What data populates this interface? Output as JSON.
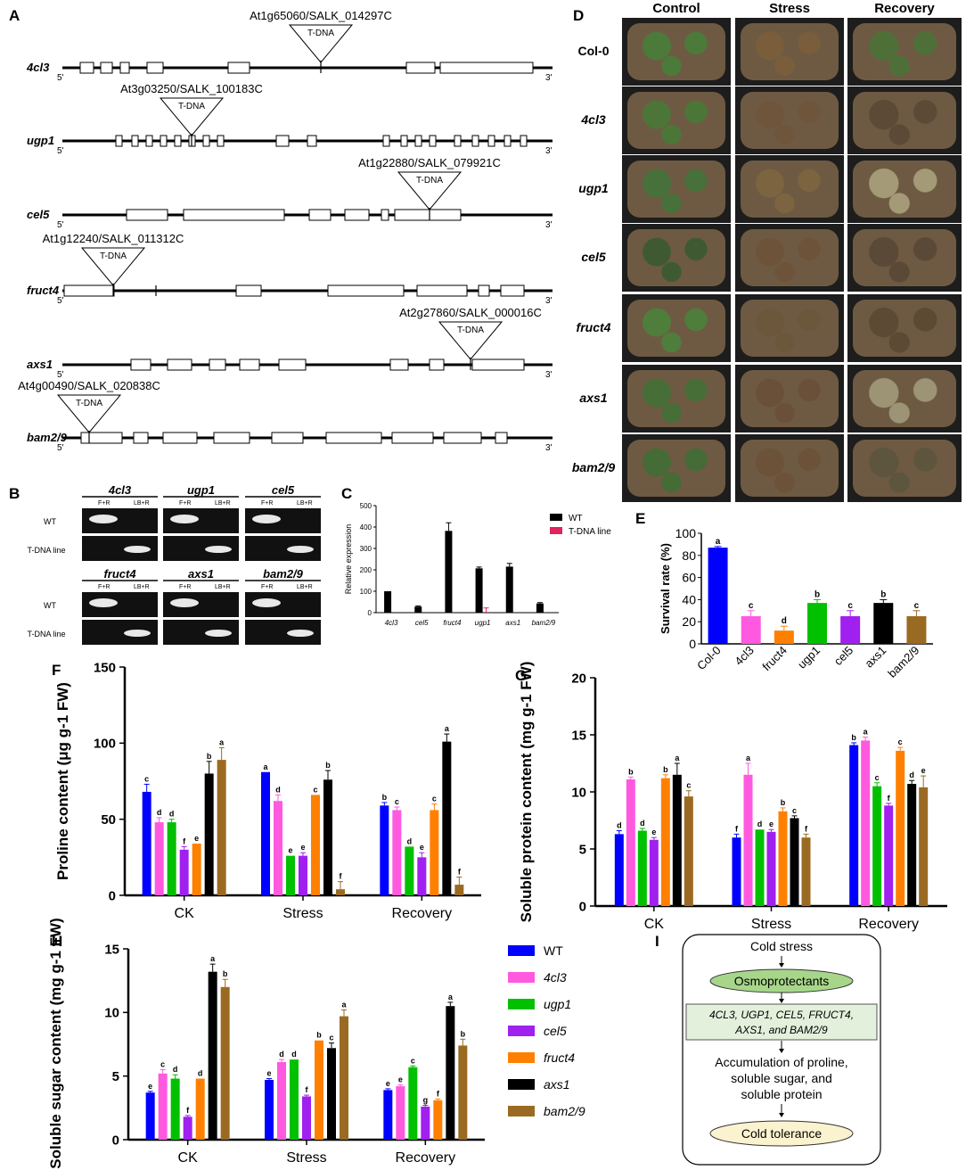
{
  "panels": {
    "A": "A",
    "B": "B",
    "C": "C",
    "D": "D",
    "E": "E",
    "F": "F",
    "G": "G",
    "H": "H",
    "I": "I"
  },
  "gene_structures": [
    {
      "gene": "4cl3",
      "label": "At1g65060/SALK_014297C"
    },
    {
      "gene": "ugp1",
      "label": "At3g03250/SALK_100183C"
    },
    {
      "gene": "cel5",
      "label": "At1g22880/SALK_079921C"
    },
    {
      "gene": "fruct4",
      "label": "At1g12240/SALK_011312C"
    },
    {
      "gene": "axs1",
      "label": "At2g27860/SALK_000016C"
    },
    {
      "gene": "bam2/9",
      "label": "At4g00490/SALK_020838C"
    }
  ],
  "tdna_label": "T-DNA",
  "end5": "5'",
  "end3": "3'",
  "gel": {
    "genes": [
      "4cl3",
      "ugp1",
      "cel5",
      "fruct4",
      "axs1",
      "bam2/9"
    ],
    "primers": [
      [
        "F+R",
        "LB+R"
      ],
      [
        "F+R",
        "LB+R"
      ],
      [
        "F+R",
        "LB+R"
      ],
      [
        "F+R",
        "LB+R"
      ],
      [
        "F+R",
        "LB+R"
      ],
      [
        "F+R",
        "LB+R"
      ]
    ],
    "row_labels": [
      "WT",
      "T-DNA line",
      "WT",
      "T-DNA line"
    ]
  },
  "photos": {
    "columns": [
      "Control",
      "Stress",
      "Recovery"
    ],
    "rows": [
      "Col-0",
      "4cl3",
      "ugp1",
      "cel5",
      "fruct4",
      "axs1",
      "bam2/9"
    ]
  },
  "legend_h": [
    "WT",
    "4cl3",
    "ugp1",
    "cel5",
    "fruct4",
    "axs1",
    "bam2/9"
  ],
  "colors": {
    "WT": "#0000ff",
    "4cl3": "#ff59e0",
    "ugp1": "#00c000",
    "cel5": "#a020f0",
    "fruct4": "#ff8000",
    "axs1": "#000000",
    "bam2/9": "#9b6a22"
  },
  "flow": {
    "n1": "Cold stress",
    "n2": "Osmoprotectants",
    "n3a": "4CL3, UGP1, CEL5, FRUCT4,",
    "n3b": "AXS1, and BAM2/9",
    "n4a": "Accumulation of proline,",
    "n4b": "soluble sugar, and",
    "n4c": "soluble protein",
    "n5": "Cold tolerance"
  },
  "chart_data": [
    {
      "id": "C",
      "type": "bar",
      "categories": [
        "4cl3",
        "cel5",
        "fruct4",
        "ugp1",
        "axs1",
        "bam2/9"
      ],
      "series": [
        {
          "name": "WT",
          "values": [
            100,
            28,
            382,
            207,
            215,
            43
          ],
          "errors": [
            0,
            3,
            38,
            6,
            15,
            4
          ]
        },
        {
          "name": "T-DNA line",
          "values": [
            0,
            0,
            0,
            0,
            0,
            0
          ],
          "errors": [
            0,
            0,
            0,
            22,
            0,
            0
          ]
        }
      ],
      "ylabel": "Relative expression",
      "ylim": [
        0,
        500
      ],
      "yticks": [
        0,
        100,
        200,
        300,
        400,
        500
      ]
    },
    {
      "id": "E",
      "type": "bar",
      "categories": [
        "Col-0",
        "4cl3",
        "fruct4",
        "ugp1",
        "cel5",
        "axs1",
        "bam2/9"
      ],
      "values": [
        87,
        25,
        12,
        37,
        25,
        37,
        25
      ],
      "errors": [
        1,
        5,
        4,
        3,
        5,
        3,
        5
      ],
      "letters": [
        "a",
        "c",
        "d",
        "b",
        "c",
        "b",
        "c"
      ],
      "ylabel": "Survival rate (%)",
      "ylim": [
        0,
        100
      ],
      "yticks": [
        0,
        20,
        40,
        60,
        80,
        100
      ]
    },
    {
      "id": "F",
      "type": "bar",
      "categories": [
        "CK",
        "Stress",
        "Recovery"
      ],
      "series": [
        {
          "name": "WT",
          "values": [
            68,
            81,
            59
          ],
          "errors": [
            5,
            0,
            2
          ],
          "letters": [
            "c",
            "a",
            "b"
          ]
        },
        {
          "name": "4cl3",
          "values": [
            48,
            62,
            56
          ],
          "errors": [
            3,
            4,
            2
          ],
          "letters": [
            "d",
            "d",
            "c"
          ]
        },
        {
          "name": "ugp1",
          "values": [
            48,
            26,
            32
          ],
          "errors": [
            2,
            0,
            0
          ],
          "letters": [
            "d",
            "e",
            "d"
          ]
        },
        {
          "name": "cel5",
          "values": [
            30,
            26,
            25
          ],
          "errors": [
            2,
            2,
            3
          ],
          "letters": [
            "f",
            "e",
            "e"
          ]
        },
        {
          "name": "fruct4",
          "values": [
            34,
            66,
            56
          ],
          "errors": [
            0,
            0,
            4
          ],
          "letters": [
            "e",
            "c",
            "c"
          ]
        },
        {
          "name": "axs1",
          "values": [
            80,
            76,
            101
          ],
          "errors": [
            8,
            6,
            5
          ],
          "letters": [
            "b",
            "b",
            "a"
          ]
        },
        {
          "name": "bam2/9",
          "values": [
            89,
            4,
            7
          ],
          "errors": [
            8,
            5,
            5
          ],
          "letters": [
            "a",
            "f",
            "f"
          ]
        }
      ],
      "ylabel": "Proline content (μg g-1 FW)",
      "ylim": [
        0,
        150
      ],
      "yticks": [
        0,
        50,
        100,
        150
      ]
    },
    {
      "id": "G",
      "type": "bar",
      "categories": [
        "CK",
        "Stress",
        "Recovery"
      ],
      "series": [
        {
          "name": "WT",
          "values": [
            6.3,
            6.0,
            14.1
          ],
          "errors": [
            0.3,
            0.3,
            0.2
          ],
          "letters": [
            "d",
            "f",
            "b"
          ]
        },
        {
          "name": "4cl3",
          "values": [
            11.1,
            11.5,
            14.5
          ],
          "errors": [
            0.2,
            1.0,
            0.3
          ],
          "letters": [
            "b",
            "a",
            "a"
          ]
        },
        {
          "name": "ugp1",
          "values": [
            6.6,
            6.7,
            10.5
          ],
          "errors": [
            0.2,
            0,
            0.3
          ],
          "letters": [
            "d",
            "d",
            "c"
          ]
        },
        {
          "name": "cel5",
          "values": [
            5.8,
            6.5,
            8.8
          ],
          "errors": [
            0.2,
            0.2,
            0.2
          ],
          "letters": [
            "e",
            "e",
            "f"
          ]
        },
        {
          "name": "fruct4",
          "values": [
            11.2,
            8.3,
            13.6
          ],
          "errors": [
            0.3,
            0.3,
            0.3
          ],
          "letters": [
            "b",
            "b",
            "c"
          ]
        },
        {
          "name": "axs1",
          "values": [
            11.5,
            7.7,
            10.7
          ],
          "errors": [
            1.0,
            0.2,
            0.3
          ],
          "letters": [
            "a",
            "c",
            "d"
          ]
        },
        {
          "name": "bam2/9",
          "values": [
            9.6,
            6.0,
            10.4
          ],
          "errors": [
            0.5,
            0.3,
            1.0
          ],
          "letters": [
            "c",
            "f",
            "e"
          ]
        }
      ],
      "ylabel": "Soluble protein content (mg g-1 FW)",
      "ylim": [
        0,
        20
      ],
      "yticks": [
        0,
        5,
        10,
        15,
        20
      ]
    },
    {
      "id": "H",
      "type": "bar",
      "categories": [
        "CK",
        "Stress",
        "Recovery"
      ],
      "series": [
        {
          "name": "WT",
          "values": [
            3.7,
            4.7,
            3.9
          ],
          "errors": [
            0.1,
            0.1,
            0.1
          ],
          "letters": [
            "e",
            "e",
            "e"
          ]
        },
        {
          "name": "4cl3",
          "values": [
            5.2,
            6.1,
            4.2
          ],
          "errors": [
            0.3,
            0.2,
            0.1
          ],
          "letters": [
            "c",
            "d",
            "e"
          ]
        },
        {
          "name": "ugp1",
          "values": [
            4.8,
            6.3,
            5.7
          ],
          "errors": [
            0.3,
            0,
            0.1
          ],
          "letters": [
            "d",
            "d",
            "c"
          ]
        },
        {
          "name": "cel5",
          "values": [
            1.8,
            3.4,
            2.6
          ],
          "errors": [
            0.1,
            0.1,
            0.1
          ],
          "letters": [
            "f",
            "f",
            "g"
          ]
        },
        {
          "name": "fruct4",
          "values": [
            4.8,
            7.8,
            3.1
          ],
          "errors": [
            0,
            0,
            0.1
          ],
          "letters": [
            "d",
            "b",
            "f"
          ]
        },
        {
          "name": "axs1",
          "values": [
            13.2,
            7.2,
            10.5
          ],
          "errors": [
            0.6,
            0.4,
            0.3
          ],
          "letters": [
            "a",
            "c",
            "a"
          ]
        },
        {
          "name": "bam2/9",
          "values": [
            12.0,
            9.7,
            7.4
          ],
          "errors": [
            0.6,
            0.5,
            0.5
          ],
          "letters": [
            "b",
            "a",
            "b"
          ]
        }
      ],
      "ylabel": "Soluble sugar content (mg g-1 FW)",
      "ylim": [
        0,
        15
      ],
      "yticks": [
        0,
        5,
        10,
        15
      ]
    }
  ]
}
